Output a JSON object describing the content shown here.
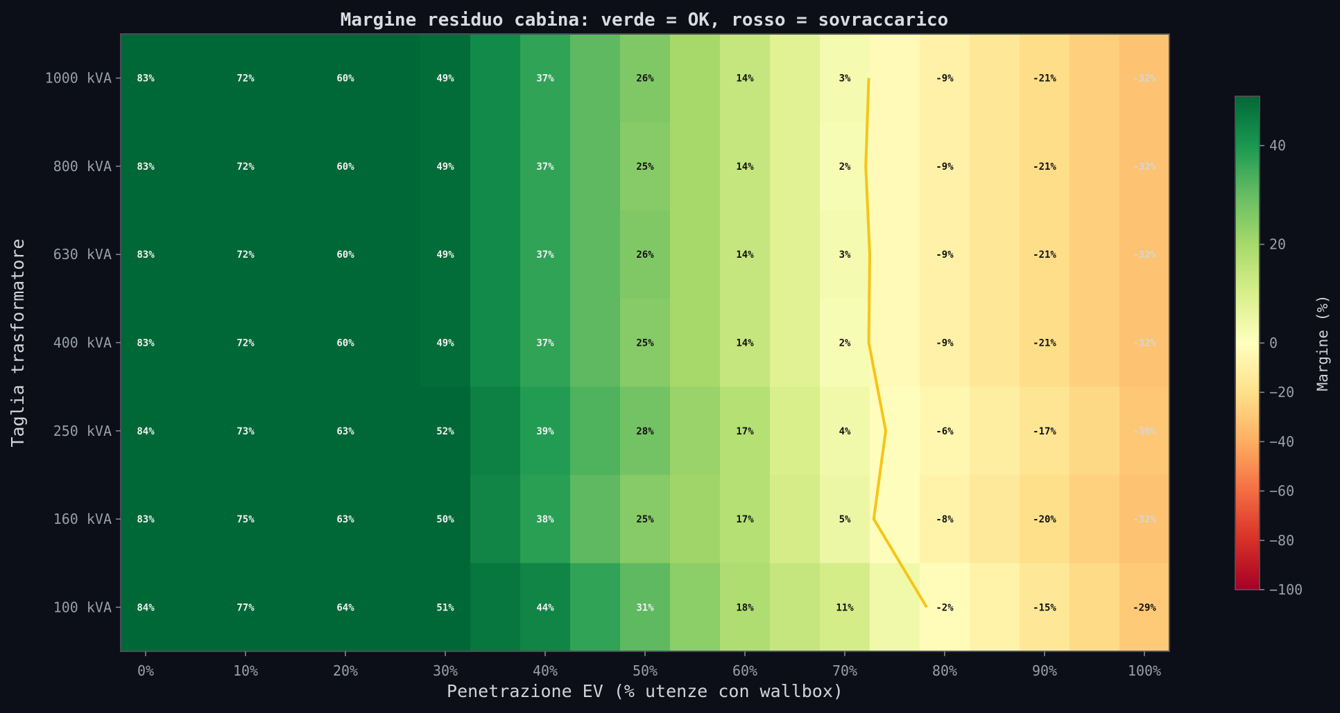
{
  "chart_data": {
    "type": "heatmap",
    "title": "Margine residuo cabina: verde = OK, rosso = sovraccarico",
    "xlabel": "Penetrazione EV (% utenze con wallbox)",
    "ylabel": "Taglia trasformatore",
    "colorbar_label": "Margine (%)",
    "colormap": "RdYlGn",
    "color_range": {
      "vmin": -100,
      "vcenter": 0,
      "vmax": 50
    },
    "colorbar_ticks": [
      40,
      20,
      0,
      -20,
      -40,
      -60,
      -80,
      -100
    ],
    "x": [
      0,
      5,
      10,
      15,
      20,
      25,
      30,
      35,
      40,
      45,
      50,
      55,
      60,
      65,
      70,
      75,
      80,
      85,
      90,
      95,
      100
    ],
    "x_tick_labels": [
      "0%",
      "10%",
      "20%",
      "30%",
      "40%",
      "50%",
      "60%",
      "70%",
      "80%",
      "90%",
      "100%"
    ],
    "y_tick_labels": [
      "1000 kVA",
      "800 kVA",
      "630 kVA",
      "400 kVA",
      "250 kVA",
      "160 kVA",
      "100 kVA"
    ],
    "values": [
      [
        83,
        77,
        72,
        66,
        60,
        54,
        49,
        43,
        37,
        31,
        26,
        20,
        14,
        8,
        3,
        -3,
        -9,
        -15,
        -21,
        -27,
        -32
      ],
      [
        83,
        77,
        72,
        66,
        60,
        54,
        49,
        43,
        37,
        31,
        25,
        20,
        14,
        8,
        2,
        -3,
        -9,
        -15,
        -21,
        -27,
        -32
      ],
      [
        83,
        77,
        72,
        66,
        60,
        54,
        49,
        43,
        37,
        31,
        26,
        20,
        14,
        8,
        3,
        -3,
        -9,
        -15,
        -21,
        -27,
        -32
      ],
      [
        83,
        77,
        72,
        66,
        60,
        54,
        49,
        43,
        37,
        31,
        25,
        20,
        14,
        8,
        2,
        -3,
        -9,
        -15,
        -21,
        -27,
        -32
      ],
      [
        84,
        78,
        73,
        68,
        63,
        57,
        52,
        45,
        39,
        33,
        28,
        22,
        17,
        10,
        4,
        -1,
        -6,
        -11,
        -17,
        -23,
        -30
      ],
      [
        83,
        79,
        75,
        69,
        63,
        56,
        50,
        44,
        38,
        31,
        25,
        21,
        17,
        11,
        5,
        -1,
        -8,
        -14,
        -20,
        -26,
        -32
      ],
      [
        84,
        80,
        77,
        70,
        64,
        57,
        51,
        47,
        44,
        37,
        31,
        24,
        18,
        14,
        11,
        4,
        -2,
        -8,
        -15,
        -22,
        -29
      ]
    ],
    "boundary_line": {
      "color": "#f5c518",
      "description_value": 0,
      "x_at_zero": [
        72.4,
        72.1,
        72.5,
        72.4,
        74.1,
        72.9,
        78.2
      ]
    }
  }
}
